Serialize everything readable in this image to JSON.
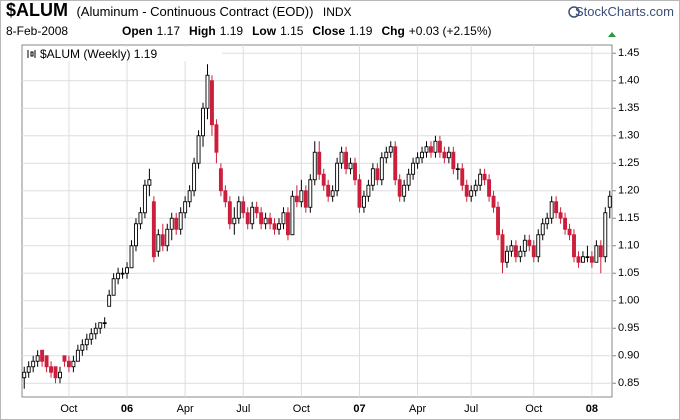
{
  "header": {
    "symbol": "$ALUM",
    "name": "(Aluminum - Continuous Contract (EOD))",
    "exchange": "INDX",
    "source": "StockCharts.com",
    "date": "8-Feb-2008",
    "fields": [
      {
        "label": "Open",
        "value": "1.17"
      },
      {
        "label": "High",
        "value": "1.19"
      },
      {
        "label": "Low",
        "value": "1.15"
      },
      {
        "label": "Close",
        "value": "1.19"
      },
      {
        "label": "Chg",
        "value": "+0.03 (+2.15%)"
      }
    ]
  },
  "chart_data": {
    "type": "candlestick",
    "categories": [
      null,
      null,
      null,
      null,
      null,
      null,
      null,
      null,
      null,
      null,
      "Oct",
      null,
      null,
      null,
      null,
      null,
      null,
      null,
      null,
      null,
      null,
      null,
      null,
      "06",
      null,
      null,
      null,
      null,
      null,
      null,
      null,
      null,
      null,
      null,
      null,
      null,
      "Apr",
      null,
      null,
      null,
      null,
      null,
      null,
      null,
      null,
      null,
      null,
      null,
      null,
      "Jul",
      null,
      null,
      null,
      null,
      null,
      null,
      null,
      null,
      null,
      null,
      null,
      null,
      "Oct",
      null,
      null,
      null,
      null,
      null,
      null,
      null,
      null,
      null,
      null,
      null,
      null,
      "07",
      null,
      null,
      null,
      null,
      null,
      null,
      null,
      null,
      null,
      null,
      null,
      null,
      "Apr",
      null,
      null,
      null,
      null,
      null,
      null,
      null,
      null,
      null,
      null,
      null,
      "Jul",
      null,
      null,
      null,
      null,
      null,
      null,
      null,
      null,
      null,
      null,
      null,
      null,
      null,
      "Oct",
      null,
      null,
      null,
      null,
      null,
      null,
      null,
      null,
      null,
      null,
      null,
      null,
      "08",
      null,
      null,
      null,
      null
    ],
    "series": [
      {
        "name": "$ALUM (Weekly) 1.19",
        "up_color": "#000000",
        "down_color": "#cc1f3c",
        "values": [
          [
            0.86,
            0.88,
            0.84,
            0.87
          ],
          [
            0.87,
            0.89,
            0.86,
            0.88
          ],
          [
            0.88,
            0.9,
            0.87,
            0.89
          ],
          [
            0.89,
            0.91,
            0.88,
            0.9
          ],
          [
            0.91,
            0.91,
            0.88,
            0.89
          ],
          [
            0.9,
            0.9,
            0.87,
            0.88
          ],
          [
            0.88,
            0.89,
            0.86,
            0.87
          ],
          [
            0.88,
            0.88,
            0.85,
            0.86
          ],
          [
            0.86,
            0.88,
            0.85,
            0.87
          ],
          [
            0.9,
            0.9,
            0.88,
            0.89
          ],
          [
            0.89,
            0.9,
            0.87,
            0.88
          ],
          [
            0.88,
            0.9,
            0.87,
            0.89
          ],
          [
            0.89,
            0.92,
            0.89,
            0.91
          ],
          [
            0.91,
            0.93,
            0.9,
            0.92
          ],
          [
            0.92,
            0.94,
            0.91,
            0.93
          ],
          [
            0.93,
            0.95,
            0.92,
            0.94
          ],
          [
            0.94,
            0.96,
            0.93,
            0.95
          ],
          [
            0.95,
            0.96,
            0.94,
            0.96
          ],
          [
            0.96,
            0.97,
            0.95,
            0.96
          ],
          [
            0.99,
            1.02,
            0.99,
            1.01
          ],
          [
            1.01,
            1.05,
            1.01,
            1.04
          ],
          [
            1.04,
            1.06,
            1.03,
            1.05
          ],
          [
            1.05,
            1.06,
            1.04,
            1.05
          ],
          [
            1.05,
            1.07,
            1.04,
            1.06
          ],
          [
            1.06,
            1.11,
            1.06,
            1.1
          ],
          [
            1.1,
            1.15,
            1.09,
            1.14
          ],
          [
            1.14,
            1.17,
            1.13,
            1.16
          ],
          [
            1.16,
            1.22,
            1.15,
            1.21
          ],
          [
            1.21,
            1.24,
            1.19,
            1.22
          ],
          [
            1.18,
            1.19,
            1.07,
            1.08
          ],
          [
            1.09,
            1.13,
            1.08,
            1.12
          ],
          [
            1.12,
            1.14,
            1.09,
            1.1
          ],
          [
            1.1,
            1.14,
            1.09,
            1.13
          ],
          [
            1.13,
            1.16,
            1.11,
            1.15
          ],
          [
            1.15,
            1.16,
            1.12,
            1.13
          ],
          [
            1.13,
            1.17,
            1.12,
            1.16
          ],
          [
            1.16,
            1.19,
            1.15,
            1.18
          ],
          [
            1.18,
            1.21,
            1.17,
            1.2
          ],
          [
            1.2,
            1.26,
            1.19,
            1.25
          ],
          [
            1.25,
            1.31,
            1.24,
            1.3
          ],
          [
            1.3,
            1.36,
            1.28,
            1.35
          ],
          [
            1.35,
            1.43,
            1.33,
            1.41
          ],
          [
            1.4,
            1.41,
            1.3,
            1.32
          ],
          [
            1.32,
            1.33,
            1.25,
            1.27
          ],
          [
            1.24,
            1.25,
            1.19,
            1.2
          ],
          [
            1.2,
            1.21,
            1.17,
            1.18
          ],
          [
            1.18,
            1.19,
            1.13,
            1.14
          ],
          [
            1.14,
            1.17,
            1.12,
            1.15
          ],
          [
            1.15,
            1.19,
            1.14,
            1.18
          ],
          [
            1.18,
            1.19,
            1.15,
            1.16
          ],
          [
            1.16,
            1.17,
            1.13,
            1.14
          ],
          [
            1.14,
            1.18,
            1.13,
            1.17
          ],
          [
            1.17,
            1.18,
            1.15,
            1.16
          ],
          [
            1.16,
            1.17,
            1.13,
            1.14
          ],
          [
            1.14,
            1.16,
            1.13,
            1.15
          ],
          [
            1.15,
            1.16,
            1.13,
            1.14
          ],
          [
            1.14,
            1.15,
            1.12,
            1.13
          ],
          [
            1.13,
            1.15,
            1.12,
            1.14
          ],
          [
            1.14,
            1.17,
            1.13,
            1.16
          ],
          [
            1.16,
            1.17,
            1.11,
            1.12
          ],
          [
            1.12,
            1.2,
            1.12,
            1.19
          ],
          [
            1.19,
            1.21,
            1.17,
            1.18
          ],
          [
            1.18,
            1.22,
            1.17,
            1.2
          ],
          [
            1.2,
            1.21,
            1.16,
            1.17
          ],
          [
            1.17,
            1.23,
            1.16,
            1.22
          ],
          [
            1.22,
            1.29,
            1.21,
            1.27
          ],
          [
            1.27,
            1.29,
            1.22,
            1.23
          ],
          [
            1.23,
            1.24,
            1.2,
            1.21
          ],
          [
            1.21,
            1.22,
            1.18,
            1.19
          ],
          [
            1.19,
            1.21,
            1.18,
            1.2
          ],
          [
            1.2,
            1.26,
            1.19,
            1.25
          ],
          [
            1.25,
            1.28,
            1.24,
            1.27
          ],
          [
            1.27,
            1.28,
            1.23,
            1.24
          ],
          [
            1.24,
            1.26,
            1.23,
            1.25
          ],
          [
            1.25,
            1.26,
            1.21,
            1.22
          ],
          [
            1.22,
            1.23,
            1.16,
            1.17
          ],
          [
            1.17,
            1.2,
            1.16,
            1.19
          ],
          [
            1.19,
            1.22,
            1.18,
            1.21
          ],
          [
            1.21,
            1.25,
            1.2,
            1.24
          ],
          [
            1.24,
            1.25,
            1.21,
            1.22
          ],
          [
            1.22,
            1.27,
            1.21,
            1.26
          ],
          [
            1.26,
            1.28,
            1.25,
            1.27
          ],
          [
            1.27,
            1.29,
            1.26,
            1.28
          ],
          [
            1.28,
            1.29,
            1.21,
            1.22
          ],
          [
            1.22,
            1.23,
            1.18,
            1.19
          ],
          [
            1.19,
            1.22,
            1.18,
            1.21
          ],
          [
            1.21,
            1.24,
            1.2,
            1.23
          ],
          [
            1.23,
            1.26,
            1.22,
            1.25
          ],
          [
            1.25,
            1.27,
            1.24,
            1.26
          ],
          [
            1.26,
            1.28,
            1.25,
            1.27
          ],
          [
            1.27,
            1.29,
            1.26,
            1.28
          ],
          [
            1.28,
            1.29,
            1.26,
            1.27
          ],
          [
            1.27,
            1.3,
            1.26,
            1.29
          ],
          [
            1.29,
            1.3,
            1.26,
            1.27
          ],
          [
            1.27,
            1.28,
            1.25,
            1.26
          ],
          [
            1.26,
            1.28,
            1.25,
            1.27
          ],
          [
            1.27,
            1.28,
            1.23,
            1.24
          ],
          [
            1.24,
            1.25,
            1.22,
            1.24
          ],
          [
            1.24,
            1.25,
            1.2,
            1.21
          ],
          [
            1.21,
            1.22,
            1.18,
            1.19
          ],
          [
            1.19,
            1.21,
            1.18,
            1.2
          ],
          [
            1.2,
            1.22,
            1.19,
            1.21
          ],
          [
            1.21,
            1.24,
            1.2,
            1.23
          ],
          [
            1.23,
            1.24,
            1.21,
            1.22
          ],
          [
            1.22,
            1.23,
            1.18,
            1.19
          ],
          [
            1.19,
            1.2,
            1.16,
            1.17
          ],
          [
            1.17,
            1.18,
            1.11,
            1.12
          ],
          [
            1.12,
            1.13,
            1.05,
            1.07
          ],
          [
            1.07,
            1.1,
            1.06,
            1.09
          ],
          [
            1.09,
            1.11,
            1.08,
            1.1
          ],
          [
            1.1,
            1.11,
            1.07,
            1.08
          ],
          [
            1.08,
            1.1,
            1.07,
            1.09
          ],
          [
            1.09,
            1.12,
            1.08,
            1.11
          ],
          [
            1.11,
            1.12,
            1.09,
            1.1
          ],
          [
            1.1,
            1.11,
            1.07,
            1.08
          ],
          [
            1.08,
            1.13,
            1.07,
            1.12
          ],
          [
            1.12,
            1.15,
            1.11,
            1.14
          ],
          [
            1.14,
            1.16,
            1.13,
            1.15
          ],
          [
            1.15,
            1.19,
            1.14,
            1.18
          ],
          [
            1.18,
            1.19,
            1.15,
            1.16
          ],
          [
            1.16,
            1.17,
            1.14,
            1.15
          ],
          [
            1.15,
            1.16,
            1.12,
            1.13
          ],
          [
            1.13,
            1.14,
            1.11,
            1.12
          ],
          [
            1.12,
            1.13,
            1.07,
            1.08
          ],
          [
            1.08,
            1.09,
            1.06,
            1.07
          ],
          [
            1.07,
            1.09,
            1.07,
            1.08
          ],
          [
            1.08,
            1.1,
            1.07,
            1.08
          ],
          [
            1.08,
            1.09,
            1.06,
            1.07
          ],
          [
            1.07,
            1.11,
            1.07,
            1.1
          ],
          [
            1.1,
            1.11,
            1.05,
            1.08
          ],
          [
            1.08,
            1.17,
            1.07,
            1.16
          ],
          [
            1.17,
            1.2,
            1.15,
            1.19
          ]
        ]
      }
    ],
    "ylim": [
      0.825,
      1.465
    ],
    "yticks": [
      0.85,
      {
        "value": 0.9,
        "label": "0.90"
      },
      0.95,
      {
        "value": 1.0,
        "label": "1.00"
      },
      1.05,
      {
        "value": 1.1,
        "label": "1.10"
      },
      1.15,
      {
        "value": 1.2,
        "label": "1.20"
      },
      1.25,
      {
        "value": 1.3,
        "label": "1.30"
      },
      1.35,
      {
        "value": 1.4,
        "label": "1.40"
      },
      1.45
    ],
    "grid": true,
    "legend": "top-left"
  }
}
